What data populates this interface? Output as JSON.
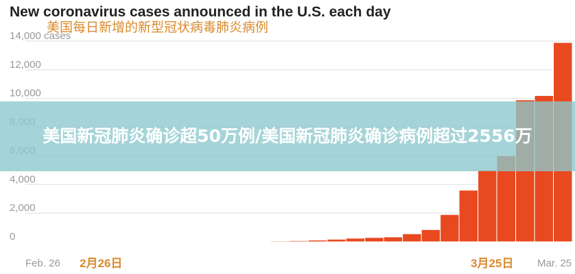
{
  "chart_data": {
    "type": "bar",
    "title": "New coronavirus cases announced in the U.S. each day",
    "subtitle": "美国每日新增的新型冠状病毒肺炎病例",
    "categories": [
      "Feb. 26",
      null,
      null,
      null,
      null,
      null,
      null,
      null,
      null,
      null,
      null,
      null,
      null,
      null,
      null,
      null,
      null,
      null,
      null,
      null,
      null,
      null,
      null,
      null,
      null,
      null,
      null,
      null,
      "Mar. 25"
    ],
    "category_labels_zh": [
      "2月26日",
      "3月25日"
    ],
    "values": [
      1,
      1,
      2,
      3,
      3,
      5,
      5,
      8,
      10,
      15,
      20,
      30,
      40,
      60,
      80,
      120,
      180,
      250,
      300,
      340,
      560,
      850,
      1900,
      3600,
      5000,
      6000,
      9900,
      10200,
      13900
    ],
    "color": "#e8491f",
    "ylim": [
      0,
      14000
    ],
    "yticks": [
      0,
      {
        "value": 2000,
        "label": "2,000"
      },
      {
        "value": 4000,
        "label": "4,000"
      },
      {
        "value": 6000,
        "label": "6,000"
      },
      {
        "value": 8000,
        "label": "8,000"
      },
      {
        "value": 10000,
        "label": "10,000"
      },
      {
        "value": 12000,
        "label": "12,000"
      },
      {
        "value": 14000,
        "label": "14,000 cases"
      }
    ],
    "grid": true,
    "banner": "美国新冠肺炎确诊超50万例/美国新冠肺炎确诊病例超过2556万"
  }
}
